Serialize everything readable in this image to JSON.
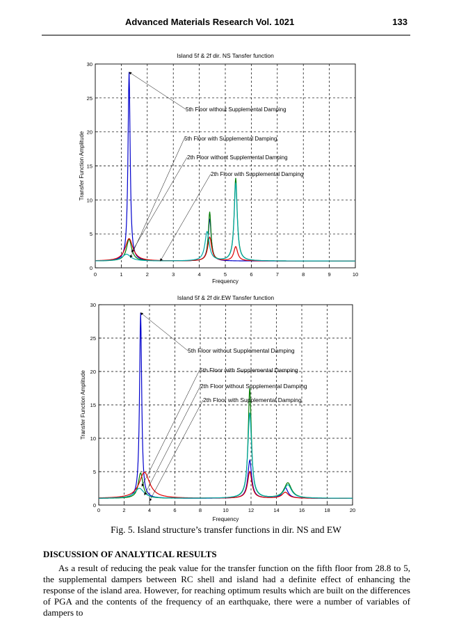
{
  "header": {
    "journal": "Advanced Materials Research Vol. 1021",
    "page_number": "133"
  },
  "figure": {
    "caption": "Fig. 5. Island structure’s transfer functions in dir. NS and EW"
  },
  "section": {
    "heading": "DISCUSSION OF ANALYTICAL RESULTS",
    "paragraph": "As a result of reducing the peak value for the transfer function on the fifth floor from 28.8 to 5, the supplemental dampers between RC shell and island had a definite effect of enhancing the response of the island area. However, for reaching optimum results which are built on the differences of PGA and the contents of the frequency of an earthquake, there were a number of variables of dampers to"
  },
  "chart_data": [
    {
      "type": "line",
      "title": "Island 5f & 2f dir. NS Tansfer function",
      "xlabel": "Frequency",
      "ylabel": "Transfer Function Amplitude",
      "xlim": [
        0,
        10
      ],
      "ylim": [
        0,
        30
      ],
      "xticks": [
        "0",
        "1",
        "2",
        "3",
        "4",
        "5",
        "6",
        "7",
        "8",
        "9",
        "10"
      ],
      "yticks": [
        "0",
        "5",
        "10",
        "15",
        "20",
        "25",
        "30"
      ],
      "grid": true,
      "series": [
        {
          "name": "5th Floor without Supplemental Damping",
          "color": "#0000cc",
          "peaks": [
            [
              1.3,
              28.8,
              0.05
            ],
            [
              4.4,
              7.2,
              0.07
            ]
          ]
        },
        {
          "name": "5th Floor with Supplemental Damping",
          "color": "#007a00",
          "peaks": [
            [
              1.3,
              4.2,
              0.12
            ],
            [
              4.4,
              8.2,
              0.06
            ],
            [
              5.4,
              13.2,
              0.07
            ]
          ]
        },
        {
          "name": "2th Floor without Supplemental Damping",
          "color": "#dd0000",
          "peaks": [
            [
              1.3,
              4.3,
              0.18
            ],
            [
              4.4,
              4.5,
              0.09
            ],
            [
              5.4,
              3.1,
              0.09
            ]
          ]
        },
        {
          "name": "2th Floor with Supplemental Damping",
          "color": "#00a8a8",
          "peaks": [
            [
              1.2,
              2.0,
              0.2
            ],
            [
              4.3,
              5.3,
              0.1
            ],
            [
              5.4,
              12.5,
              0.07
            ]
          ]
        }
      ],
      "annotations": [
        {
          "text": "5th Floor without Supplemental Damping",
          "target": [
            1.3,
            28.8
          ]
        },
        {
          "text": "5th Floor with Supplemental Damping",
          "target": [
            1.35,
            1.5
          ]
        },
        {
          "text": "2th Floor without Supplemental Damping",
          "target": [
            1.4,
            2.3
          ]
        },
        {
          "text": "2th Floor with Supplemental Damping",
          "target": [
            2.5,
            1.0
          ]
        }
      ]
    },
    {
      "type": "line",
      "title": "Island 5f & 2f dir.EW Tansfer function",
      "xlabel": "Frequency",
      "ylabel": "Transfer Function Amplitude",
      "xlim": [
        0,
        20
      ],
      "ylim": [
        0,
        30
      ],
      "xticks": [
        "0",
        "2",
        "4",
        "6",
        "8",
        "10",
        "12",
        "14",
        "16",
        "18",
        "20"
      ],
      "yticks": [
        "0",
        "5",
        "10",
        "15",
        "20",
        "25",
        "30"
      ],
      "grid": true,
      "series": [
        {
          "name": "5th Floor without Supplemental Damping",
          "color": "#0000cc",
          "peaks": [
            [
              3.3,
              28.8,
              0.1
            ],
            [
              11.9,
              6.7,
              0.18
            ],
            [
              14.7,
              2.6,
              0.25
            ]
          ]
        },
        {
          "name": "5th Floor with Supplemental Damping",
          "color": "#007a00",
          "peaks": [
            [
              3.3,
              4.8,
              0.22
            ],
            [
              11.9,
              17.5,
              0.15
            ],
            [
              14.9,
              3.3,
              0.35
            ]
          ]
        },
        {
          "name": "2th Floor without Supplemental Damping",
          "color": "#dd0000",
          "peaks": [
            [
              3.6,
              4.9,
              0.5
            ],
            [
              11.9,
              5.0,
              0.2
            ],
            [
              14.7,
              1.9,
              0.3
            ]
          ]
        },
        {
          "name": "2th Floor with Supplemental Damping",
          "color": "#00a8a8",
          "peaks": [
            [
              3.2,
              2.5,
              0.45
            ],
            [
              11.9,
              13.8,
              0.18
            ],
            [
              14.9,
              3.0,
              0.35
            ]
          ]
        }
      ],
      "annotations": [
        {
          "text": "5th Floor without Supplemental Damping",
          "target": [
            3.3,
            28.8
          ]
        },
        {
          "text": "5th Floor with Supplemental Damping",
          "target": [
            3.4,
            2.8
          ]
        },
        {
          "text": "2th Floor without Supplemental Damping",
          "target": [
            3.6,
            1.5
          ]
        },
        {
          "text": "2th Floor with Supplemental Damping",
          "target": [
            4.0,
            0.6
          ]
        }
      ]
    }
  ]
}
